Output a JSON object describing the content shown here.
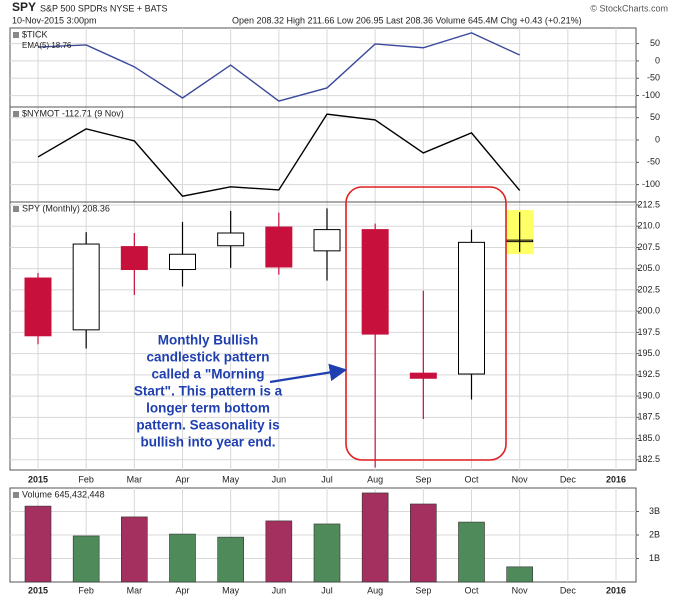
{
  "header": {
    "symbol": "SPY",
    "name": "S&P 500 SPDRs NYSE + BATS",
    "date": "10-Nov-2015 3:00pm",
    "quote": "Open 208.32 High 211.66 Low 206.95 Last 208.36 Volume 645.4M Chg +0.43 (+0.21%)",
    "source": "© StockCharts.com"
  },
  "chart_data": [
    {
      "type": "line",
      "label": "$TICK",
      "sublabel": "EMA(5) 18.76",
      "color": "#3b4a9c",
      "values": [
        40,
        46,
        -17,
        -107,
        -12,
        -116,
        -78,
        49,
        38,
        81,
        17,
        null,
        null
      ],
      "ylim": [
        -133,
        95
      ],
      "yticks": [
        50,
        0,
        -50,
        -100
      ],
      "grid": true
    },
    {
      "type": "line",
      "label": "$NYMOT -112.71 (9 Nov)",
      "color": "#000000",
      "values": [
        -38,
        25,
        -2,
        -126,
        -105,
        -112,
        58,
        45,
        -29,
        16,
        -113,
        null,
        null
      ],
      "ylim": [
        -139,
        74
      ],
      "yticks": [
        50,
        0,
        -50,
        -100
      ],
      "grid": true
    },
    {
      "type": "candlestick",
      "label": "SPY (Monthly) 208.36",
      "categories": [
        "2015",
        "Feb",
        "Mar",
        "Apr",
        "May",
        "Jun",
        "Jul",
        "Aug",
        "Sep",
        "Oct",
        "Nov",
        "Dec",
        "2016"
      ],
      "open": [
        203.9,
        197.8,
        207.6,
        204.9,
        207.7,
        209.9,
        207.1,
        209.6,
        192.7,
        192.6,
        208.32,
        null,
        null
      ],
      "high": [
        204.5,
        209.3,
        209.2,
        210.5,
        211.8,
        211.6,
        212.1,
        210.3,
        202.4,
        209.6,
        211.66,
        null,
        null
      ],
      "low": [
        196.1,
        195.6,
        201.9,
        202.9,
        205.1,
        204.3,
        203.6,
        181.6,
        187.3,
        189.6,
        206.95,
        null,
        null
      ],
      "close": [
        197.1,
        207.9,
        204.9,
        206.7,
        209.2,
        205.2,
        209.6,
        197.3,
        192.1,
        208.1,
        208.36,
        null,
        null
      ],
      "up_color": "#ffffff",
      "down_color": "#c8103c",
      "highlight": {
        "index": 10,
        "color": "#ffff66"
      },
      "ylim": [
        181.3,
        212.85
      ],
      "yticks": [
        212.5,
        {
          "value": 210,
          "label": "210.0"
        },
        207.5,
        {
          "value": 205,
          "label": "205.0"
        },
        202.5,
        {
          "value": 200,
          "label": "200.0"
        },
        197.5,
        {
          "value": 195,
          "label": "195.0"
        },
        192.5,
        {
          "value": 190,
          "label": "190.0"
        },
        187.5,
        {
          "value": 185,
          "label": "185.0"
        },
        182.5
      ],
      "grid": true,
      "annotation": [
        "Monthly Bullish",
        "candlestick pattern",
        "called a \"Morning",
        "Start\". This pattern is a",
        "longer term bottom",
        "pattern. Seasonality is",
        "bullish into year end."
      ]
    },
    {
      "type": "bar",
      "label": "Volume 645,432,448",
      "categories": [
        "2015",
        "Feb",
        "Mar",
        "Apr",
        "May",
        "Jun",
        "Jul",
        "Aug",
        "Sep",
        "Oct",
        "Nov",
        "Dec",
        "2016"
      ],
      "values": [
        3230000000,
        1960000000,
        2770000000,
        2040000000,
        1910000000,
        2600000000,
        2470000000,
        3790000000,
        3320000000,
        2550000000,
        645432448,
        null,
        null
      ],
      "colors": [
        "#a3305e",
        "#4f8a5b",
        "#a3305e",
        "#4f8a5b",
        "#4f8a5b",
        "#a3305e",
        "#4f8a5b",
        "#a3305e",
        "#a3305e",
        "#4f8a5b",
        "#4f8a5b",
        null,
        null
      ],
      "ylim": [
        0,
        4000000000
      ],
      "yticks": [
        {
          "value": 3000000000,
          "label": "3B"
        },
        {
          "value": 2000000000,
          "label": "2B"
        },
        {
          "value": 1000000000,
          "label": "1B"
        }
      ],
      "grid": true
    }
  ]
}
